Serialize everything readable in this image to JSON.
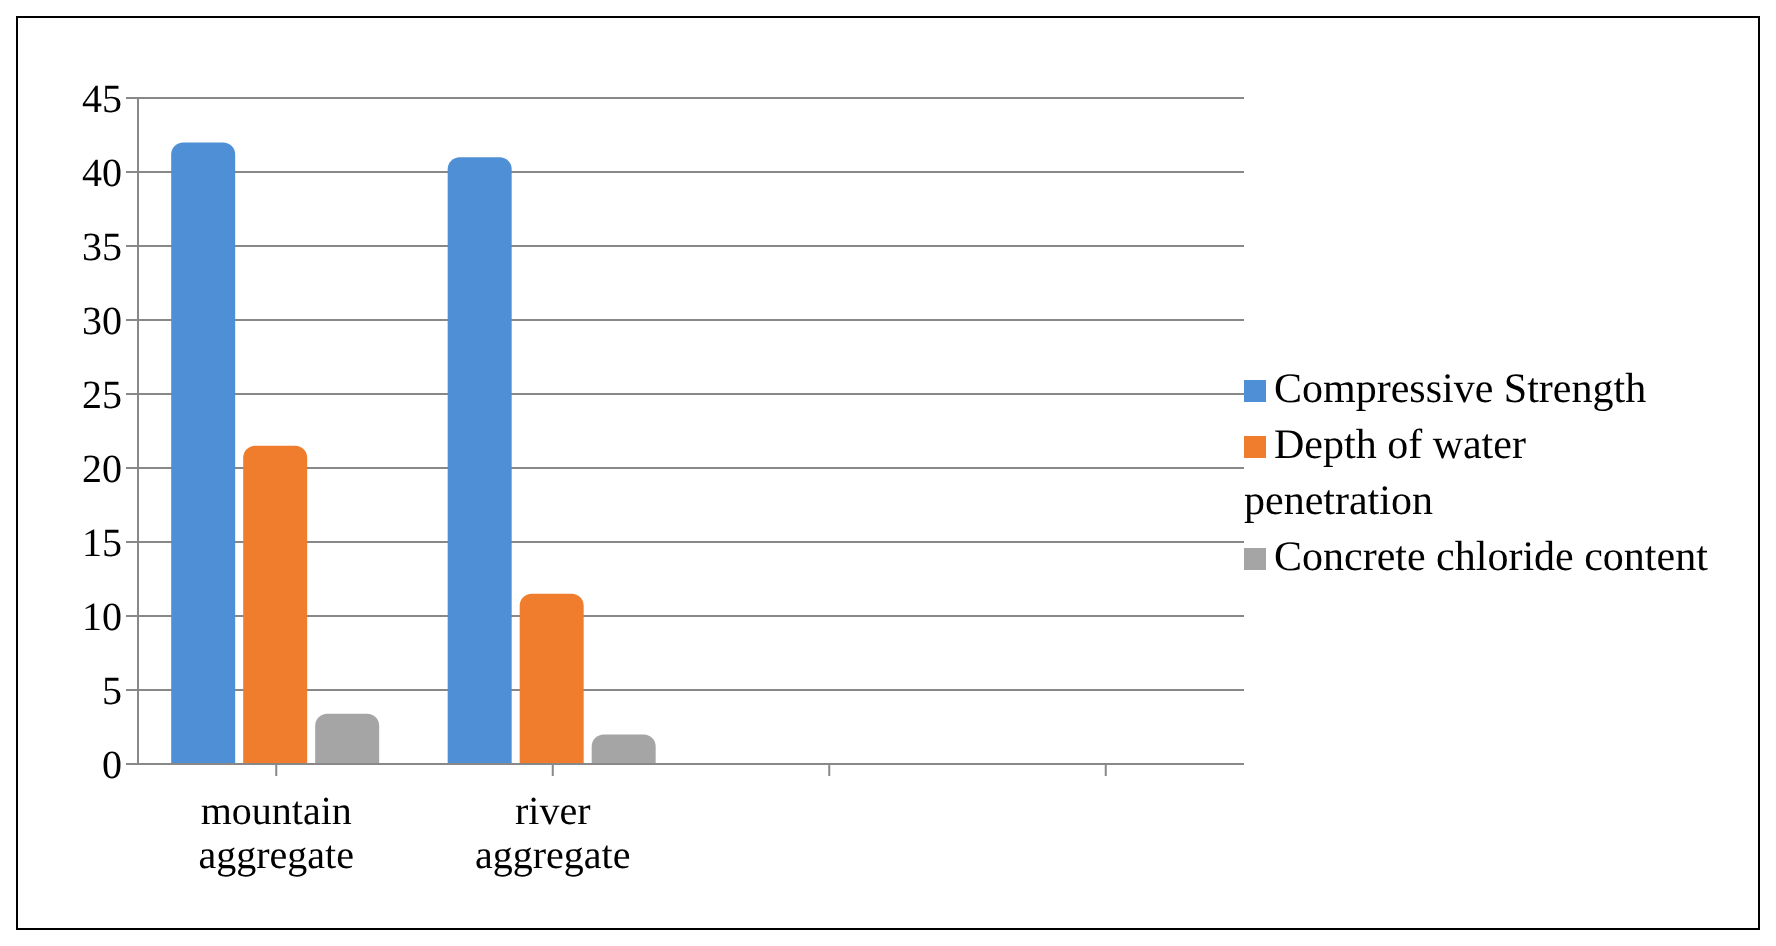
{
  "chart_data": {
    "type": "bar",
    "categories": [
      "mountain aggregate",
      "river aggregate",
      null,
      null
    ],
    "series": [
      {
        "name": "Compressive Strength",
        "color": "#4f8fd6",
        "values": [
          42,
          41,
          null,
          null
        ]
      },
      {
        "name": "Depth of water penetration",
        "color": "#f07d2d",
        "values": [
          21.5,
          11.5,
          null,
          null
        ]
      },
      {
        "name": "Concrete chloride content",
        "color": "#a5a5a5",
        "values": [
          3.4,
          2,
          null,
          null
        ]
      }
    ],
    "ylim": [
      0,
      45
    ],
    "yticks": [
      0,
      5,
      10,
      15,
      20,
      25,
      30,
      35,
      40,
      45
    ],
    "grid": "y",
    "legend": "right"
  }
}
